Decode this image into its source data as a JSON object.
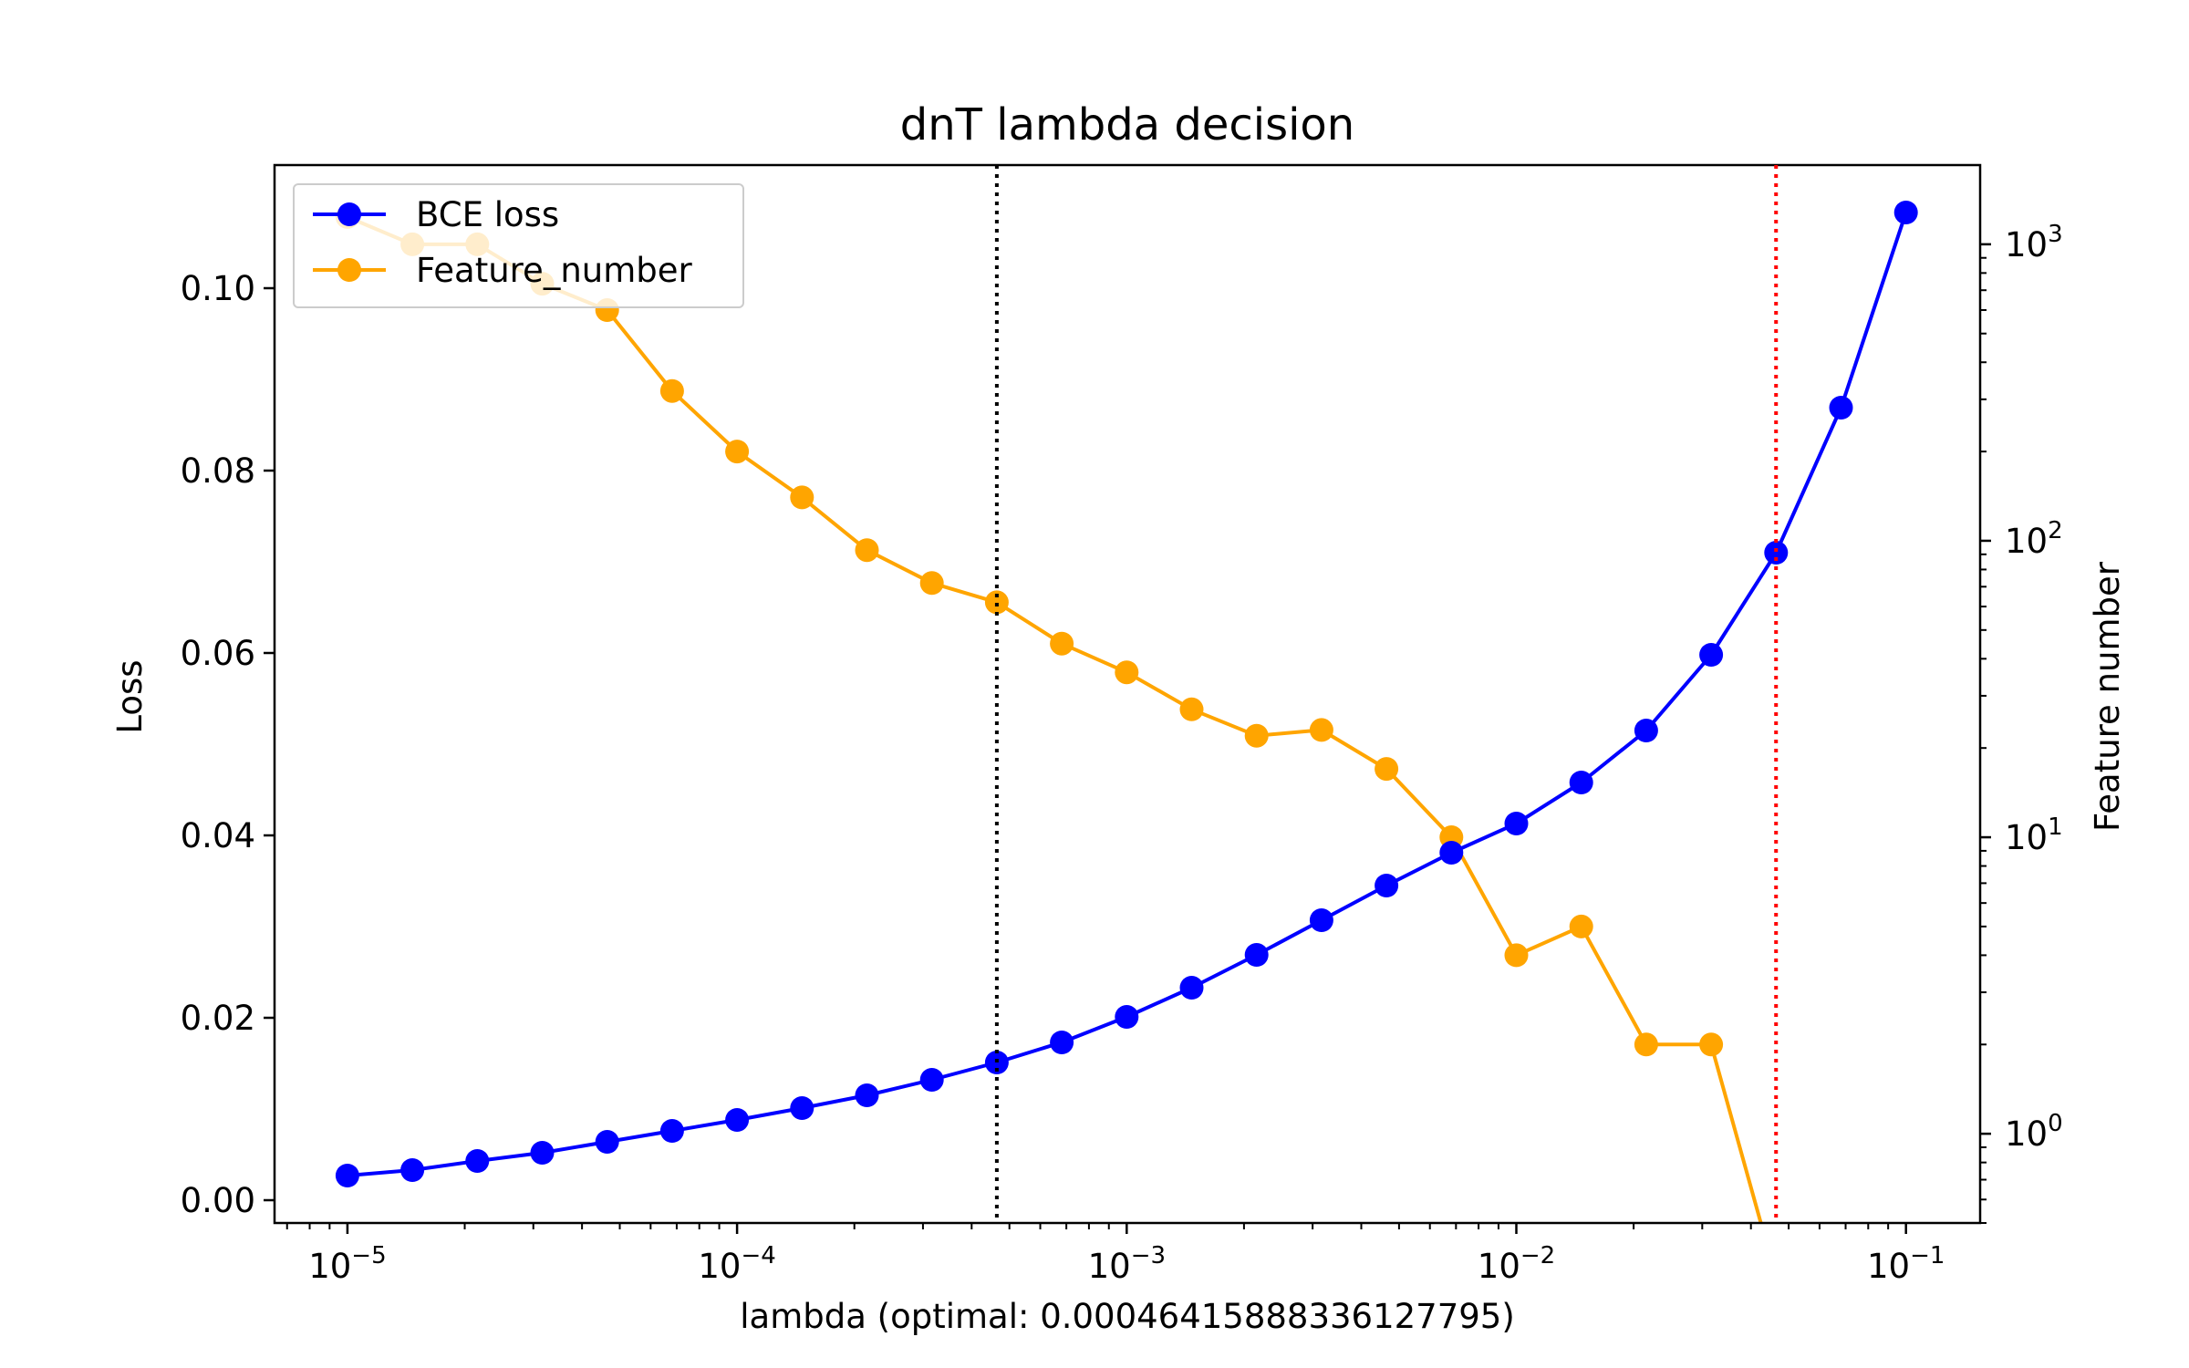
{
  "chart_data": {
    "type": "line",
    "title": "dnT lambda decision",
    "xlabel": "lambda (optimal: 0.00046415888336127795)",
    "ylabel": "Loss",
    "y2label": "Feature number",
    "xscale": "log",
    "xlim": [
      6.5e-06,
      0.155
    ],
    "ylim": [
      -0.0025,
      0.1135
    ],
    "y2scale": "log",
    "y2lim": [
      0.5,
      1850
    ],
    "x": [
      1e-05,
      1.468e-05,
      2.154e-05,
      3.162e-05,
      4.642e-05,
      6.813e-05,
      0.0001,
      0.0001468,
      0.0002154,
      0.0003162,
      0.0004642,
      0.0006813,
      0.001,
      0.001468,
      0.002154,
      0.003162,
      0.004642,
      0.006813,
      0.01,
      0.01468,
      0.02154,
      0.03162,
      0.04642,
      0.06813,
      0.1
    ],
    "series": [
      {
        "name": "BCE loss",
        "axis": "left",
        "color": "#0000ff",
        "values": [
          0.0027,
          0.0033,
          0.0043,
          0.0052,
          0.0064,
          0.0076,
          0.0088,
          0.0101,
          0.0115,
          0.0132,
          0.0151,
          0.0173,
          0.0201,
          0.0233,
          0.0269,
          0.0307,
          0.0345,
          0.0381,
          0.0413,
          0.0458,
          0.0515,
          0.0598,
          0.071,
          0.0869,
          0.1083
        ]
      },
      {
        "name": "Feature_number",
        "axis": "right",
        "color": "#ffa500",
        "values": [
          1236,
          1000,
          1000,
          736,
          600,
          320,
          200,
          140,
          93,
          72,
          62,
          45,
          36,
          27,
          22,
          23,
          17,
          10,
          4,
          5,
          2,
          2,
          0,
          null,
          null
        ]
      }
    ],
    "x_ticks": [
      {
        "value": 1e-05,
        "base": "10",
        "exp": "−5"
      },
      {
        "value": 0.0001,
        "base": "10",
        "exp": "−4"
      },
      {
        "value": 0.001,
        "base": "10",
        "exp": "−3"
      },
      {
        "value": 0.01,
        "base": "10",
        "exp": "−2"
      },
      {
        "value": 0.1,
        "base": "10",
        "exp": "−1"
      }
    ],
    "y_ticks": [
      {
        "value": 0.0,
        "label": "0.00"
      },
      {
        "value": 0.02,
        "label": "0.02"
      },
      {
        "value": 0.04,
        "label": "0.04"
      },
      {
        "value": 0.06,
        "label": "0.06"
      },
      {
        "value": 0.08,
        "label": "0.08"
      },
      {
        "value": 0.1,
        "label": "0.10"
      }
    ],
    "y2_ticks": [
      {
        "value": 1,
        "base": "10",
        "exp": "0"
      },
      {
        "value": 10,
        "base": "10",
        "exp": "1"
      },
      {
        "value": 100,
        "base": "10",
        "exp": "2"
      },
      {
        "value": 1000,
        "base": "10",
        "exp": "3"
      }
    ],
    "vlines": [
      {
        "x": 0.00046415888336127795,
        "color": "#000000",
        "style": "dotted"
      },
      {
        "x": 0.0464,
        "color": "#ff0000",
        "style": "dotted"
      }
    ],
    "legend": {
      "position": "top-left",
      "entries": [
        "BCE loss",
        "Feature_number"
      ]
    },
    "grid": false
  }
}
